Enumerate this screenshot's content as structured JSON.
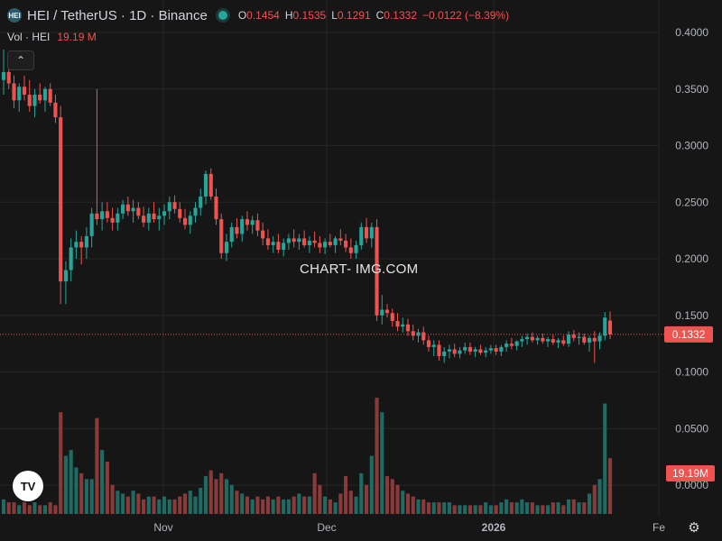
{
  "header": {
    "logo_text": "HEI",
    "title": "HEI / TetherUS · 1D · Binance",
    "ohlc": [
      {
        "k": "O",
        "v": "0.1454"
      },
      {
        "k": "H",
        "v": "0.1535"
      },
      {
        "k": "L",
        "v": "0.1291"
      },
      {
        "k": "C",
        "v": "0.1332"
      }
    ],
    "change": "−0.0122 (−8.39%)"
  },
  "volume_label": {
    "name": "Vol · HEI",
    "value": "19.19 M"
  },
  "watermark": "CHART- IMG.COM",
  "colors": {
    "up": "#26a69a",
    "down": "#ef5350",
    "up_vol": "#1f6b63",
    "down_vol": "#8b3a3a",
    "bg": "#161616",
    "grid": "#262626"
  },
  "chart_data": {
    "type": "candlestick",
    "ylim": [
      0.0,
      0.4
    ],
    "y_ticks": [
      "0.4000",
      "0.3500",
      "0.3000",
      "0.2500",
      "0.2000",
      "0.1500",
      "0.1000",
      "0.0500",
      "0.0000"
    ],
    "x_ticks": [
      "Nov",
      "Dec",
      "2026",
      "Fe"
    ],
    "last_price_label": "0.1332",
    "last_price": 0.1332,
    "volume_badge": "19.19M",
    "volume_badge_value": 19.19,
    "volume_ylim": [
      0,
      45
    ],
    "candles": [
      [
        0.358,
        0.385,
        0.345,
        0.365,
        5
      ],
      [
        0.365,
        0.372,
        0.35,
        0.355,
        4
      ],
      [
        0.355,
        0.362,
        0.333,
        0.34,
        4
      ],
      [
        0.34,
        0.355,
        0.33,
        0.352,
        3
      ],
      [
        0.352,
        0.362,
        0.34,
        0.345,
        4
      ],
      [
        0.345,
        0.358,
        0.33,
        0.335,
        3
      ],
      [
        0.335,
        0.35,
        0.325,
        0.345,
        4
      ],
      [
        0.345,
        0.355,
        0.337,
        0.34,
        3
      ],
      [
        0.34,
        0.352,
        0.33,
        0.35,
        3
      ],
      [
        0.35,
        0.355,
        0.335,
        0.338,
        4
      ],
      [
        0.338,
        0.345,
        0.32,
        0.325,
        3
      ],
      [
        0.325,
        0.335,
        0.16,
        0.18,
        35
      ],
      [
        0.18,
        0.198,
        0.16,
        0.19,
        20
      ],
      [
        0.19,
        0.218,
        0.18,
        0.21,
        22
      ],
      [
        0.21,
        0.225,
        0.2,
        0.215,
        16
      ],
      [
        0.215,
        0.22,
        0.195,
        0.21,
        14
      ],
      [
        0.21,
        0.228,
        0.2,
        0.22,
        12
      ],
      [
        0.22,
        0.245,
        0.21,
        0.24,
        12
      ],
      [
        0.24,
        0.35,
        0.23,
        0.235,
        33
      ],
      [
        0.235,
        0.25,
        0.225,
        0.242,
        22
      ],
      [
        0.242,
        0.25,
        0.232,
        0.236,
        18
      ],
      [
        0.236,
        0.245,
        0.225,
        0.232,
        10
      ],
      [
        0.232,
        0.245,
        0.225,
        0.24,
        8
      ],
      [
        0.24,
        0.252,
        0.235,
        0.248,
        7
      ],
      [
        0.248,
        0.255,
        0.238,
        0.242,
        6
      ],
      [
        0.242,
        0.252,
        0.232,
        0.245,
        8
      ],
      [
        0.245,
        0.25,
        0.235,
        0.238,
        7
      ],
      [
        0.238,
        0.246,
        0.228,
        0.232,
        5
      ],
      [
        0.232,
        0.245,
        0.225,
        0.24,
        6
      ],
      [
        0.24,
        0.25,
        0.232,
        0.235,
        6
      ],
      [
        0.235,
        0.245,
        0.225,
        0.238,
        5
      ],
      [
        0.238,
        0.248,
        0.23,
        0.242,
        6
      ],
      [
        0.242,
        0.255,
        0.235,
        0.25,
        5
      ],
      [
        0.25,
        0.256,
        0.24,
        0.244,
        5
      ],
      [
        0.244,
        0.25,
        0.232,
        0.236,
        6
      ],
      [
        0.236,
        0.244,
        0.226,
        0.23,
        7
      ],
      [
        0.23,
        0.242,
        0.222,
        0.238,
        8
      ],
      [
        0.238,
        0.25,
        0.232,
        0.245,
        6
      ],
      [
        0.245,
        0.262,
        0.238,
        0.255,
        9
      ],
      [
        0.255,
        0.278,
        0.248,
        0.275,
        13
      ],
      [
        0.275,
        0.28,
        0.252,
        0.255,
        15
      ],
      [
        0.255,
        0.262,
        0.23,
        0.235,
        12
      ],
      [
        0.235,
        0.24,
        0.2,
        0.205,
        14
      ],
      [
        0.205,
        0.222,
        0.198,
        0.215,
        12
      ],
      [
        0.215,
        0.232,
        0.21,
        0.228,
        10
      ],
      [
        0.228,
        0.236,
        0.218,
        0.222,
        8
      ],
      [
        0.222,
        0.238,
        0.215,
        0.235,
        7
      ],
      [
        0.235,
        0.242,
        0.225,
        0.23,
        6
      ],
      [
        0.23,
        0.238,
        0.222,
        0.234,
        5
      ],
      [
        0.234,
        0.24,
        0.22,
        0.225,
        6
      ],
      [
        0.225,
        0.232,
        0.212,
        0.218,
        5
      ],
      [
        0.218,
        0.226,
        0.208,
        0.212,
        6
      ],
      [
        0.212,
        0.22,
        0.205,
        0.215,
        5
      ],
      [
        0.215,
        0.222,
        0.205,
        0.208,
        6
      ],
      [
        0.208,
        0.218,
        0.202,
        0.214,
        5
      ],
      [
        0.214,
        0.222,
        0.208,
        0.218,
        5
      ],
      [
        0.218,
        0.226,
        0.21,
        0.215,
        6
      ],
      [
        0.215,
        0.222,
        0.208,
        0.218,
        7
      ],
      [
        0.218,
        0.225,
        0.21,
        0.212,
        6
      ],
      [
        0.212,
        0.22,
        0.205,
        0.216,
        6
      ],
      [
        0.216,
        0.224,
        0.21,
        0.214,
        14
      ],
      [
        0.214,
        0.22,
        0.205,
        0.21,
        10
      ],
      [
        0.21,
        0.218,
        0.204,
        0.215,
        6
      ],
      [
        0.215,
        0.222,
        0.21,
        0.212,
        5
      ],
      [
        0.212,
        0.22,
        0.205,
        0.218,
        4
      ],
      [
        0.218,
        0.226,
        0.212,
        0.216,
        7
      ],
      [
        0.216,
        0.222,
        0.206,
        0.21,
        13
      ],
      [
        0.21,
        0.218,
        0.2,
        0.205,
        8
      ],
      [
        0.205,
        0.216,
        0.2,
        0.212,
        6
      ],
      [
        0.212,
        0.232,
        0.208,
        0.228,
        14
      ],
      [
        0.228,
        0.236,
        0.214,
        0.218,
        10
      ],
      [
        0.218,
        0.232,
        0.21,
        0.228,
        20
      ],
      [
        0.228,
        0.235,
        0.145,
        0.15,
        40
      ],
      [
        0.15,
        0.168,
        0.142,
        0.155,
        35
      ],
      [
        0.155,
        0.16,
        0.148,
        0.152,
        13
      ],
      [
        0.152,
        0.156,
        0.14,
        0.145,
        12
      ],
      [
        0.145,
        0.152,
        0.136,
        0.14,
        10
      ],
      [
        0.14,
        0.148,
        0.135,
        0.142,
        8
      ],
      [
        0.142,
        0.147,
        0.132,
        0.136,
        7
      ],
      [
        0.136,
        0.142,
        0.128,
        0.132,
        6
      ],
      [
        0.132,
        0.138,
        0.126,
        0.135,
        5
      ],
      [
        0.135,
        0.14,
        0.124,
        0.128,
        5
      ],
      [
        0.128,
        0.132,
        0.118,
        0.122,
        4
      ],
      [
        0.122,
        0.128,
        0.114,
        0.124,
        4
      ],
      [
        0.124,
        0.128,
        0.11,
        0.114,
        4
      ],
      [
        0.114,
        0.122,
        0.108,
        0.118,
        4
      ],
      [
        0.118,
        0.124,
        0.112,
        0.12,
        4
      ],
      [
        0.12,
        0.125,
        0.113,
        0.116,
        3
      ],
      [
        0.116,
        0.122,
        0.112,
        0.119,
        3
      ],
      [
        0.119,
        0.126,
        0.116,
        0.122,
        3
      ],
      [
        0.122,
        0.126,
        0.115,
        0.118,
        3
      ],
      [
        0.118,
        0.122,
        0.113,
        0.12,
        3
      ],
      [
        0.12,
        0.124,
        0.115,
        0.117,
        3
      ],
      [
        0.117,
        0.122,
        0.113,
        0.119,
        4
      ],
      [
        0.119,
        0.124,
        0.116,
        0.121,
        3
      ],
      [
        0.121,
        0.124,
        0.115,
        0.118,
        3
      ],
      [
        0.118,
        0.124,
        0.114,
        0.122,
        4
      ],
      [
        0.122,
        0.128,
        0.118,
        0.125,
        5
      ],
      [
        0.125,
        0.13,
        0.12,
        0.123,
        4
      ],
      [
        0.123,
        0.128,
        0.119,
        0.127,
        4
      ],
      [
        0.127,
        0.132,
        0.122,
        0.129,
        5
      ],
      [
        0.129,
        0.134,
        0.124,
        0.131,
        4
      ],
      [
        0.131,
        0.135,
        0.126,
        0.128,
        4
      ],
      [
        0.128,
        0.132,
        0.124,
        0.13,
        3
      ],
      [
        0.13,
        0.134,
        0.125,
        0.127,
        3
      ],
      [
        0.127,
        0.131,
        0.122,
        0.129,
        3
      ],
      [
        0.129,
        0.133,
        0.124,
        0.126,
        4
      ],
      [
        0.126,
        0.13,
        0.121,
        0.128,
        4
      ],
      [
        0.128,
        0.132,
        0.123,
        0.125,
        3
      ],
      [
        0.125,
        0.136,
        0.122,
        0.133,
        5
      ],
      [
        0.133,
        0.137,
        0.127,
        0.13,
        5
      ],
      [
        0.13,
        0.135,
        0.124,
        0.131,
        4
      ],
      [
        0.131,
        0.134,
        0.124,
        0.126,
        4
      ],
      [
        0.126,
        0.132,
        0.118,
        0.13,
        7
      ],
      [
        0.13,
        0.136,
        0.108,
        0.127,
        10
      ],
      [
        0.127,
        0.135,
        0.12,
        0.132,
        12
      ],
      [
        0.132,
        0.153,
        0.128,
        0.148,
        38
      ],
      [
        0.1454,
        0.1535,
        0.1291,
        0.1332,
        19.19
      ]
    ]
  }
}
